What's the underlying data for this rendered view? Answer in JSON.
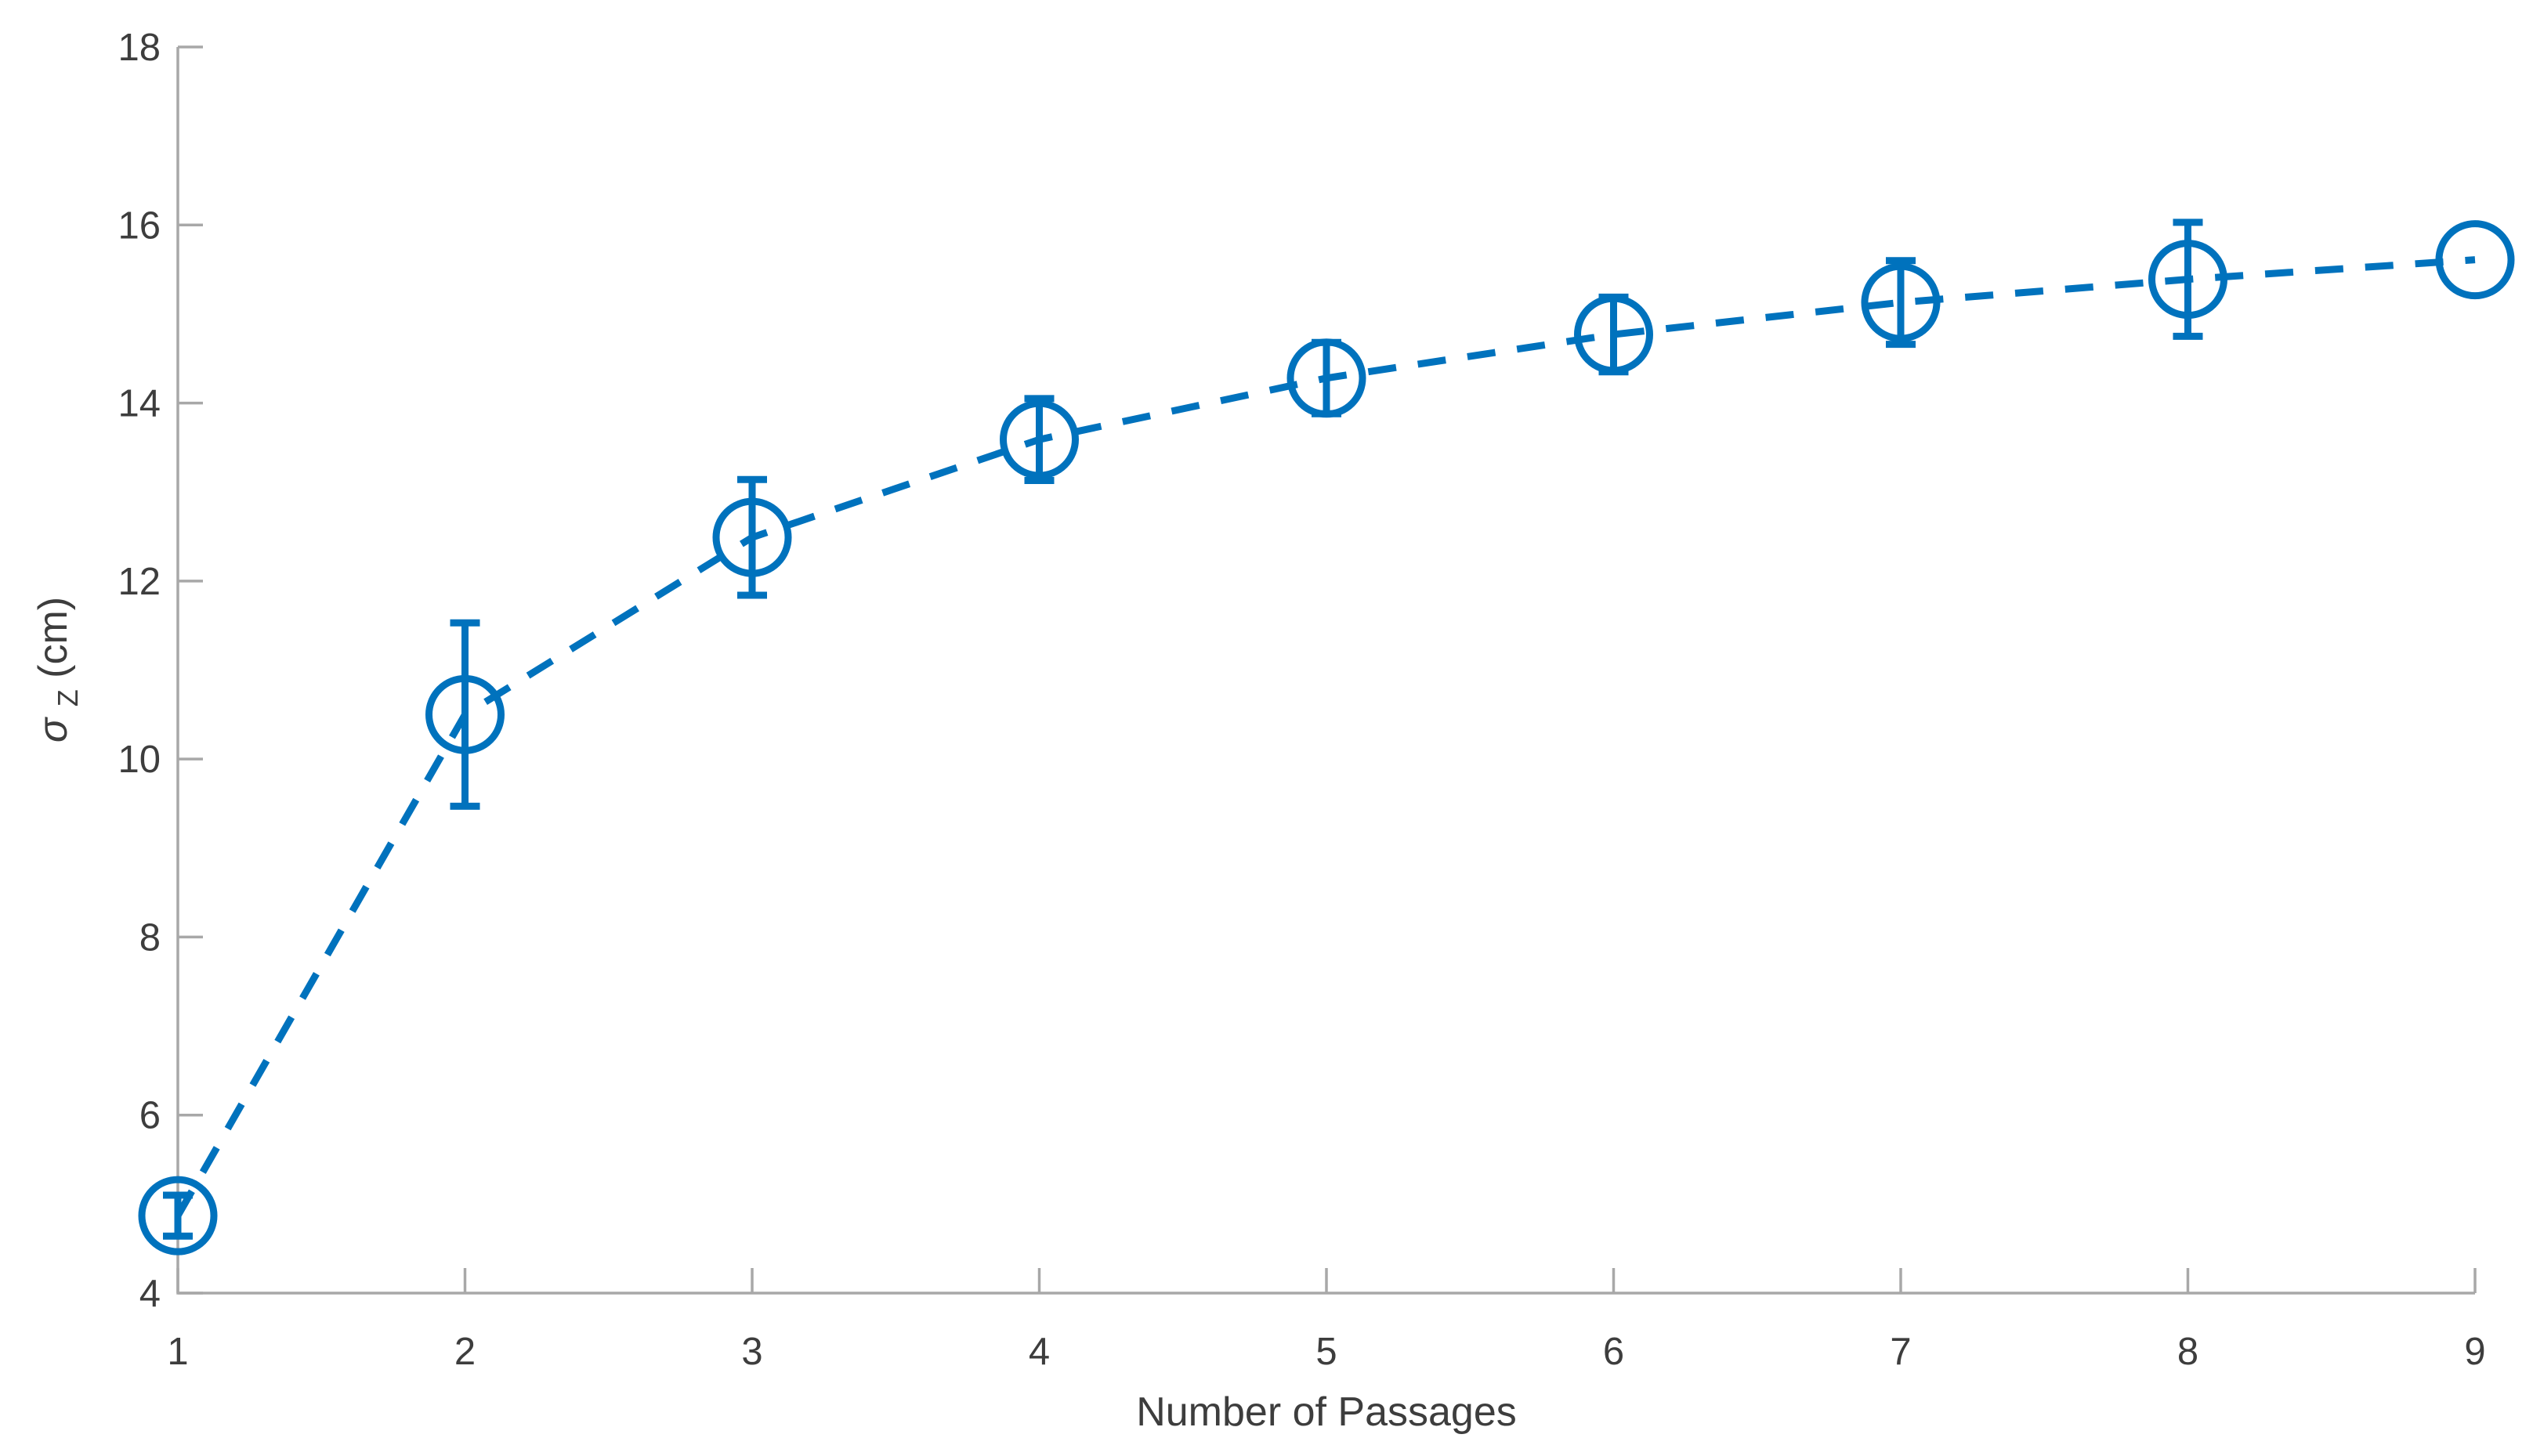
{
  "figure": {
    "background": "#ffffff"
  },
  "chart_data": {
    "type": "line",
    "title": "",
    "xlabel": "Number of Passages",
    "ylabel": {
      "symbol": "σ",
      "subscript": "Z",
      "unit": " (cm)"
    },
    "x": [
      1,
      2,
      3,
      4,
      5,
      6,
      7,
      8,
      9
    ],
    "series": [
      {
        "name": "sigma-z-vs-passages",
        "values": [
          4.87,
          10.5,
          12.49,
          13.59,
          14.28,
          14.77,
          15.13,
          15.39,
          15.61
        ],
        "yerr": [
          0.23,
          1.03,
          0.65,
          0.46,
          0.4,
          0.42,
          0.47,
          0.64,
          0.0
        ],
        "color": "#0072BD",
        "line_style": "dashed",
        "marker": "open-circle"
      }
    ],
    "xlim": [
      1,
      9
    ],
    "ylim": [
      4,
      18
    ],
    "xticks": [
      1,
      2,
      3,
      4,
      5,
      6,
      7,
      8,
      9
    ],
    "xtick_labels": [
      "1",
      "2",
      "3",
      "4",
      "5",
      "6",
      "7",
      "8",
      "9"
    ],
    "yticks": [
      4,
      6,
      8,
      10,
      12,
      14,
      16,
      18
    ],
    "ytick_labels": [
      "4",
      "6",
      "8",
      "10",
      "12",
      "14",
      "16",
      "18"
    ],
    "grid": false,
    "legend": null,
    "tick_direction": "in",
    "axis_color": "#a8a8a8",
    "text_color": "#3d3d3d"
  }
}
